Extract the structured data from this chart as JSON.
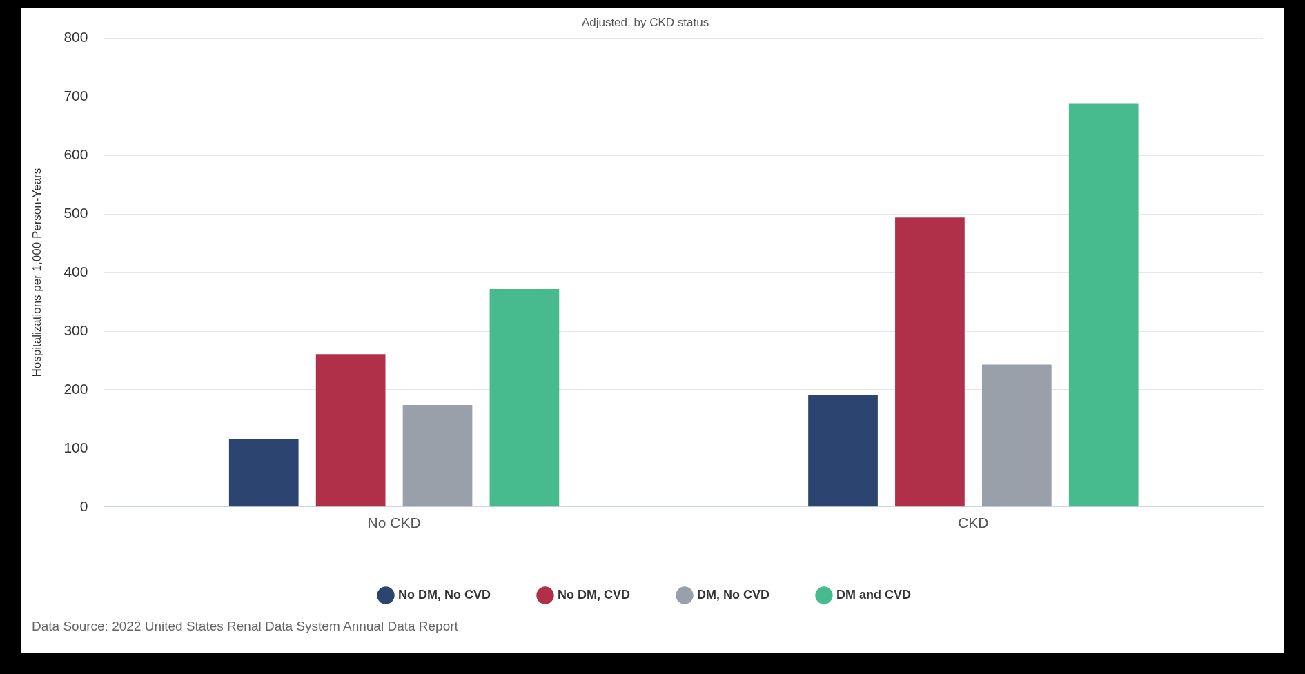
{
  "chart_data": {
    "type": "bar",
    "title": "Adjusted, by CKD status",
    "ylabel": "Hospitalizations per 1,000 Person-Years",
    "categories": [
      "No CKD",
      "CKD"
    ],
    "series": [
      {
        "name": "No DM, No CVD",
        "color": "#2b4570",
        "values": [
          116,
          191
        ]
      },
      {
        "name": "No DM, CVD",
        "color": "#b0304a",
        "values": [
          261,
          494
        ]
      },
      {
        "name": "DM, No CVD",
        "color": "#99a0a9",
        "values": [
          174,
          243
        ]
      },
      {
        "name": "DM and CVD",
        "color": "#47bb8e",
        "values": [
          372,
          688
        ]
      }
    ],
    "ylim": [
      0,
      800
    ],
    "yticks": [
      0,
      100,
      200,
      300,
      400,
      500,
      600,
      700,
      800
    ],
    "grid": "y",
    "legend": "bottom",
    "marker": "circle",
    "annotations": [
      "Data Source: 2022 United States Renal Data System Annual Data Report"
    ]
  }
}
